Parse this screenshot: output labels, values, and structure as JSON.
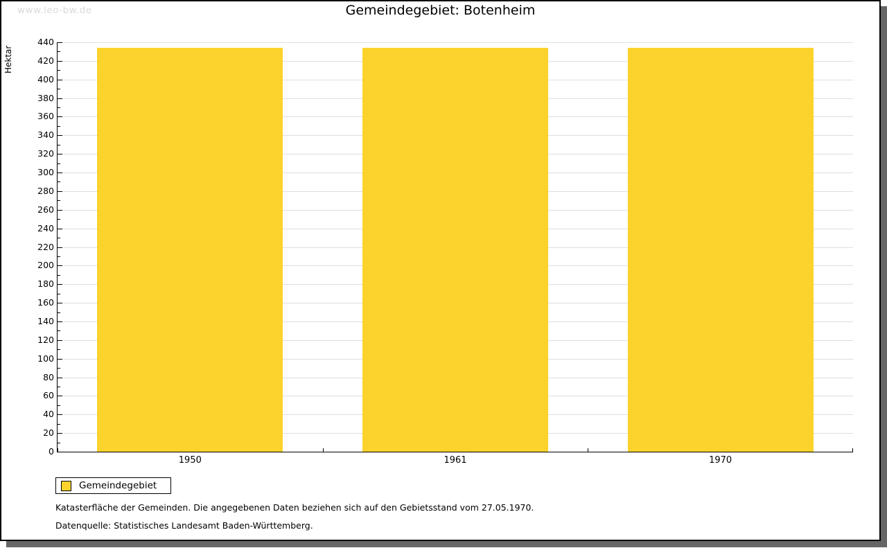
{
  "watermark": "www.leo-bw.de",
  "title": "Gemeindegebiet: Botenheim",
  "chart_data": {
    "type": "bar",
    "title": "Gemeindegebiet: Botenheim",
    "categories": [
      "1950",
      "1961",
      "1970"
    ],
    "series": [
      {
        "name": "Gemeindegebiet",
        "values": [
          434,
          434,
          434
        ]
      }
    ],
    "xlabel": "",
    "ylabel": "Hektar",
    "ylim": [
      0,
      440
    ],
    "ytick_step": 20,
    "yminor_step": 10,
    "grid": "horizontal-major",
    "legend_position": "bottom-left",
    "bar_color": "#FCD32C"
  },
  "legend": {
    "items": [
      {
        "label": "Gemeindegebiet",
        "color": "#FCD32C"
      }
    ]
  },
  "footnotes": [
    "Katasterfläche der Gemeinden. Die angegebenen Daten beziehen sich auf den Gebietsstand vom 27.05.1970.",
    "Datenquelle: Statistisches Landesamt Baden-Württemberg."
  ],
  "colors": {
    "bar": "#FCD32C",
    "grid": "#DEDEDE",
    "axis": "#000000",
    "watermark": "#D9D9D9",
    "shadow": "#666666"
  }
}
